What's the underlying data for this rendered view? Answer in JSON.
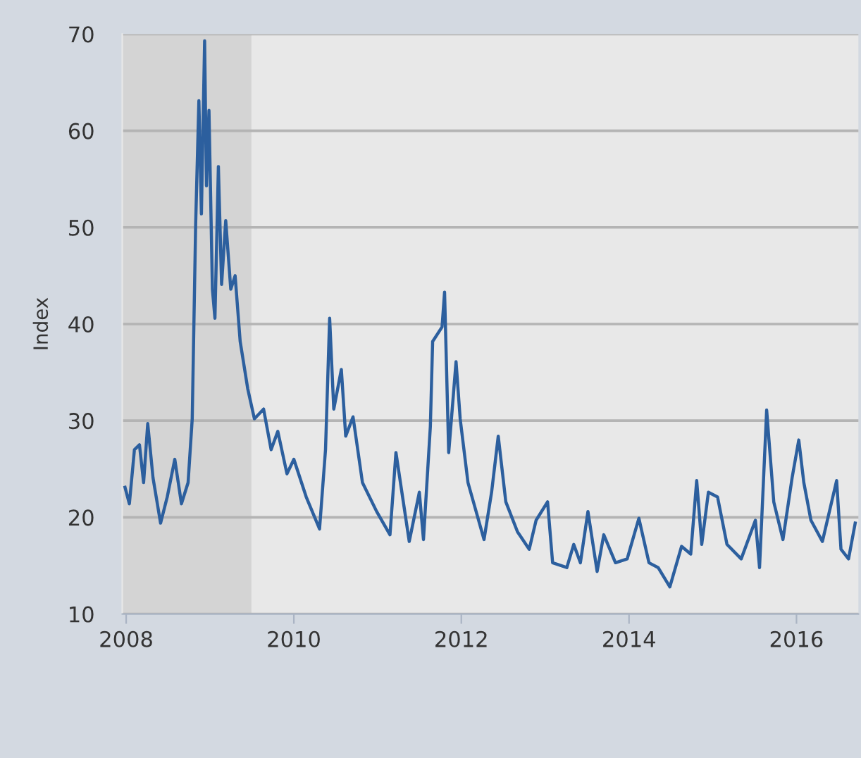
{
  "chart_data": {
    "type": "line",
    "ylabel": "Index",
    "x": [
      "2007-12-27",
      "2008-01-15",
      "2008-02-06",
      "2008-02-28",
      "2008-03-17",
      "2008-04-04",
      "2008-04-27",
      "2008-05-30",
      "2008-06-28",
      "2008-07-31",
      "2008-08-29",
      "2008-09-27",
      "2008-10-15",
      "2008-10-30",
      "2008-11-13",
      "2008-11-24",
      "2008-12-08",
      "2008-12-16",
      "2008-12-27",
      "2009-01-11",
      "2009-01-22",
      "2009-02-06",
      "2009-02-20",
      "2009-03-10",
      "2009-04-01",
      "2009-04-20",
      "2009-05-12",
      "2009-06-14",
      "2009-07-13",
      "2009-08-22",
      "2009-09-24",
      "2009-10-23",
      "2009-12-02",
      "2010-01-01",
      "2010-02-24",
      "2010-04-23",
      "2010-05-19",
      "2010-06-06",
      "2010-06-24",
      "2010-07-27",
      "2010-08-15",
      "2010-09-16",
      "2010-10-27",
      "2010-12-28",
      "2011-02-24",
      "2011-03-22",
      "2011-05-19",
      "2011-07-02",
      "2011-07-20",
      "2011-08-19",
      "2011-08-29",
      "2011-10-09",
      "2011-10-20",
      "2011-11-07",
      "2011-12-09",
      "2011-12-27",
      "2012-01-30",
      "2012-04-09",
      "2012-05-12",
      "2012-06-10",
      "2012-07-13",
      "2012-09-02",
      "2012-10-23",
      "2012-11-22",
      "2013-01-11",
      "2013-02-02",
      "2013-04-05",
      "2013-05-05",
      "2013-06-03",
      "2013-07-06",
      "2013-08-15",
      "2013-09-13",
      "2013-11-03",
      "2013-12-24",
      "2014-02-13",
      "2014-03-29",
      "2014-05-08",
      "2014-06-28",
      "2014-08-18",
      "2014-09-27",
      "2014-10-23",
      "2014-11-14",
      "2014-12-13",
      "2015-01-22",
      "2015-03-04",
      "2015-05-05",
      "2015-07-06",
      "2015-07-24",
      "2015-08-24",
      "2015-09-24",
      "2015-11-03",
      "2015-12-13",
      "2016-01-11",
      "2016-02-02",
      "2016-03-04",
      "2016-04-23",
      "2016-06-24",
      "2016-07-13",
      "2016-08-15",
      "2016-09-13"
    ],
    "series": [
      {
        "color": "#2c5f9e",
        "values": [
          23.1,
          21.4,
          27.0,
          27.5,
          23.6,
          29.7,
          24.1,
          19.4,
          22.1,
          26.0,
          21.4,
          23.6,
          30.2,
          50.4,
          63.1,
          51.4,
          69.3,
          54.3,
          62.1,
          43.6,
          40.6,
          56.3,
          44.1,
          50.7,
          43.6,
          45.0,
          38.2,
          33.3,
          30.2,
          31.2,
          27.0,
          28.9,
          24.5,
          26.0,
          22.1,
          18.8,
          27.0,
          40.6,
          31.2,
          35.3,
          28.4,
          30.4,
          23.6,
          20.6,
          18.2,
          26.7,
          17.5,
          22.6,
          17.7,
          29.4,
          38.2,
          39.7,
          43.3,
          26.7,
          36.1,
          30.2,
          23.6,
          17.7,
          22.6,
          28.4,
          21.6,
          18.5,
          16.7,
          19.7,
          21.6,
          15.3,
          14.8,
          17.2,
          15.3,
          20.6,
          14.4,
          18.2,
          15.3,
          15.7,
          19.9,
          15.3,
          14.8,
          12.8,
          17.0,
          16.2,
          23.8,
          17.2,
          22.6,
          22.1,
          17.2,
          15.7,
          19.7,
          14.8,
          31.1,
          21.6,
          17.7,
          24.1,
          28.0,
          23.6,
          19.7,
          17.5,
          23.8,
          16.7,
          15.7,
          19.4
        ]
      }
    ],
    "xlim": [
      "2007-12-15",
      "2016-09-27"
    ],
    "xticks": [
      {
        "value": "2008-01-01",
        "label": "2008"
      },
      {
        "value": "2010-01-01",
        "label": "2010"
      },
      {
        "value": "2012-01-01",
        "label": "2012"
      },
      {
        "value": "2014-01-01",
        "label": "2014"
      },
      {
        "value": "2016-01-01",
        "label": "2016"
      }
    ],
    "ylim": [
      10,
      70
    ],
    "yticks": [
      10,
      20,
      30,
      40,
      50,
      60,
      70
    ],
    "bands": [
      {
        "axis": "x",
        "from": "2007-12-15",
        "to": "2009-06-30",
        "color": "#d4d4d4"
      }
    ],
    "grid": "y",
    "marker": "none",
    "line_style": "solid"
  }
}
